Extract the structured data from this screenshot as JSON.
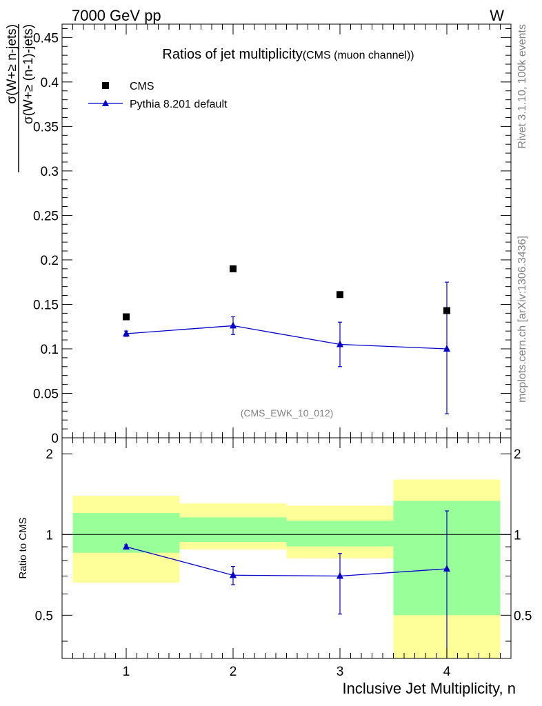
{
  "header": {
    "energy_label": "7000 GeV pp",
    "process_label": "W"
  },
  "side_labels": {
    "rivet": "Rivet 3.1.10,  100k events",
    "mcplots": "mcplots.cern.ch [arXiv:1306.3436]"
  },
  "chart_data": [
    {
      "type": "scatter",
      "panel": "main",
      "title": "Ratios of jet multiplicity",
      "subtitle": "(CMS (muon channel))",
      "watermark": "(CMS_EWK_10_012)",
      "ylabel_numerator": "σ(W+≥ n-jets)",
      "ylabel_denominator": "σ(W+≥ (n-1)-jets)",
      "xlim": [
        0.4,
        4.6
      ],
      "ylim": [
        0,
        0.465
      ],
      "yticks": [
        0,
        0.05,
        0.1,
        0.15,
        0.2,
        0.25,
        0.3,
        0.35,
        0.4,
        0.45
      ],
      "ytick_labels": [
        "0",
        "0.05",
        "0.1",
        "0.15",
        "0.2",
        "0.25",
        "0.3",
        "0.35",
        "0.4",
        "0.45"
      ],
      "legend_position": "top-left",
      "x": [
        1,
        2,
        3,
        4
      ],
      "series": [
        {
          "name": "CMS",
          "marker": "square",
          "color": "#000000",
          "values": [
            0.136,
            0.19,
            0.161,
            0.143
          ]
        },
        {
          "name": "Pythia 8.201 default",
          "marker": "triangle",
          "color": "#0000cc",
          "values": [
            0.117,
            0.126,
            0.105,
            0.1
          ],
          "err_low": [
            0.003,
            0.01,
            0.025,
            0.073
          ],
          "err_high": [
            0.003,
            0.01,
            0.025,
            0.075
          ]
        }
      ]
    },
    {
      "type": "scatter",
      "panel": "ratio",
      "ylabel": "Ratio to CMS",
      "xlabel": "Inclusive Jet Multiplicity, n",
      "xlim": [
        0.4,
        4.6
      ],
      "ylim": [
        0.345,
        2.295
      ],
      "yticks": [
        0.5,
        1,
        2
      ],
      "ytick_labels": [
        "0.5",
        "1",
        "2"
      ],
      "xticks": [
        1,
        2,
        3,
        4
      ],
      "xtick_labels": [
        "1",
        "2",
        "3",
        "4"
      ],
      "reference_line": 1,
      "bands": [
        {
          "x_low": 0.5,
          "x_high": 1.5,
          "inner": [
            0.855,
            1.203
          ],
          "outer": [
            0.662,
            1.395
          ]
        },
        {
          "x_low": 1.5,
          "x_high": 2.5,
          "inner": [
            0.938,
            1.159
          ],
          "outer": [
            0.88,
            1.305
          ]
        },
        {
          "x_low": 2.5,
          "x_high": 3.5,
          "inner": [
            0.903,
            1.126
          ],
          "outer": [
            0.815,
            1.281
          ]
        },
        {
          "x_low": 3.5,
          "x_high": 4.5,
          "inner": [
            0.5,
            1.335
          ],
          "outer": [
            0.345,
            1.604
          ]
        }
      ],
      "band_colors": {
        "inner": "#99ff99",
        "outer": "#ffff99"
      },
      "series": [
        {
          "name": "Pythia 8.201 default",
          "marker": "triangle",
          "color": "#0000cc",
          "x": [
            1,
            2,
            3,
            4
          ],
          "values": [
            0.9,
            0.705,
            0.7,
            0.745
          ],
          "err_low": [
            0.015,
            0.055,
            0.195,
            0.52
          ],
          "err_high": [
            0.015,
            0.055,
            0.15,
            0.48
          ]
        }
      ]
    }
  ]
}
